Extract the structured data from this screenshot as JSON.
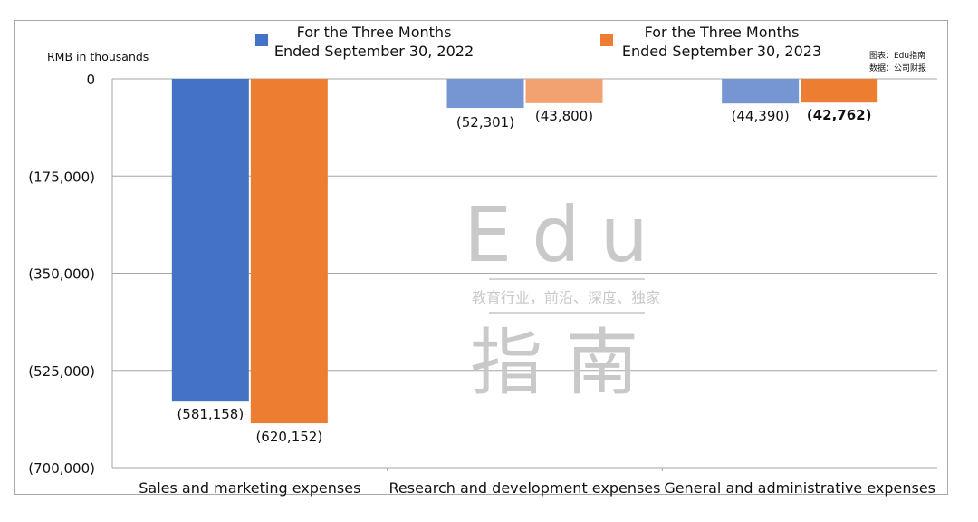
{
  "chart_data": {
    "type": "bar",
    "unit_label": "RMB in thousands",
    "categories": [
      "Sales and marketing expenses",
      "Research and development expenses",
      "General and administrative expenses"
    ],
    "series": [
      {
        "name": "For the Three Months\nEnded September 30, 2022",
        "values": [
          -581158,
          -52301,
          -44390
        ],
        "labels": [
          "(581,158)",
          "(52,301)",
          "(44,390)"
        ],
        "colors": [
          "#4472c4",
          "#7596d3",
          "#7596d3"
        ]
      },
      {
        "name": "For the Three Months\nEnded September 30, 2023",
        "values": [
          -620152,
          -43800,
          -42762
        ],
        "labels": [
          "(620,152)",
          "(43,800)",
          "(42,762)"
        ],
        "colors": [
          "#ed7d31",
          "#f1a270",
          "#ed7d31"
        ]
      }
    ],
    "yticks": [
      0,
      -175000,
      -350000,
      -525000,
      -700000
    ],
    "yticklabels": [
      "0",
      "(175,000)",
      "(350,000)",
      "(525,000)",
      "(700,000)"
    ],
    "ylim": [
      -700000,
      0
    ],
    "grid": true,
    "legend": "top",
    "xlabel": "",
    "ylabel": ""
  },
  "source_note": {
    "line1": "图表：Edu指南",
    "line2": "数据：公司财报"
  },
  "watermark": {
    "latin": "Edu",
    "tagline": "教育行业，前沿、深度、独家",
    "chinese": "指南"
  }
}
